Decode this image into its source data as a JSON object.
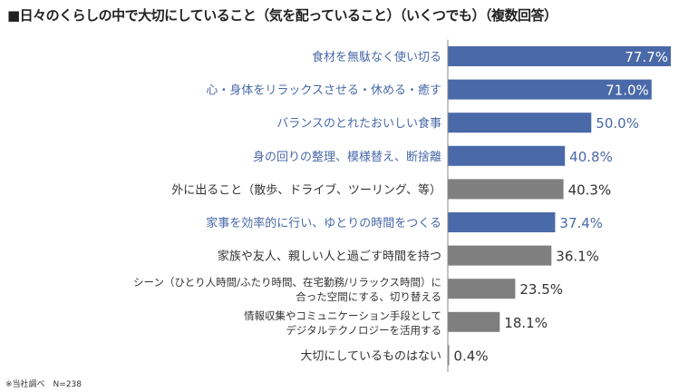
{
  "chart_data": {
    "type": "bar",
    "orientation": "horizontal",
    "title": "■日々のくらしの中で大切にしていること（気を配っていること）（いくつでも）（複数回答）",
    "unit": "%",
    "xlim": [
      0,
      80
    ],
    "grid": false,
    "categories": [
      [
        "食材を無駄なく使い切る"
      ],
      [
        "心・身体をリラックスさせる・休める・癒す"
      ],
      [
        "バランスのとれたおいしい食事"
      ],
      [
        "身の回りの整理、模様替え、断捨離"
      ],
      [
        "外に出ること（散歩、ドライブ、ツーリング、等）"
      ],
      [
        "家事を効率的に行い、ゆとりの時間をつくる"
      ],
      [
        "家族や友人、親しい人と過ごす時間を持つ"
      ],
      [
        "シーン（ひとり人時間/ふたり時間、在宅勤務/リラックス時間）に",
        "合った空間にする、切り替える"
      ],
      [
        "情報収集やコミュニケーション手段として",
        "デジタルテクノロジーを活用する"
      ],
      [
        "大切にしているものはない"
      ]
    ],
    "values": [
      77.7,
      71.0,
      50.0,
      40.8,
      40.3,
      37.4,
      36.1,
      23.5,
      18.1,
      0.4
    ],
    "labels": [
      "77.7%",
      "71.0%",
      "50.0%",
      "40.8%",
      "40.3%",
      "37.4%",
      "36.1%",
      "23.5%",
      "18.1%",
      "0.4%"
    ],
    "highlighted": [
      true,
      true,
      true,
      true,
      false,
      true,
      false,
      false,
      false,
      false
    ],
    "colors": {
      "highlight": "#4a69a8",
      "normal": "#7f7f7f",
      "highlight_text": "#4a69a8",
      "normal_text": "#333333"
    }
  },
  "footnote": "※当社調べ　N=238"
}
